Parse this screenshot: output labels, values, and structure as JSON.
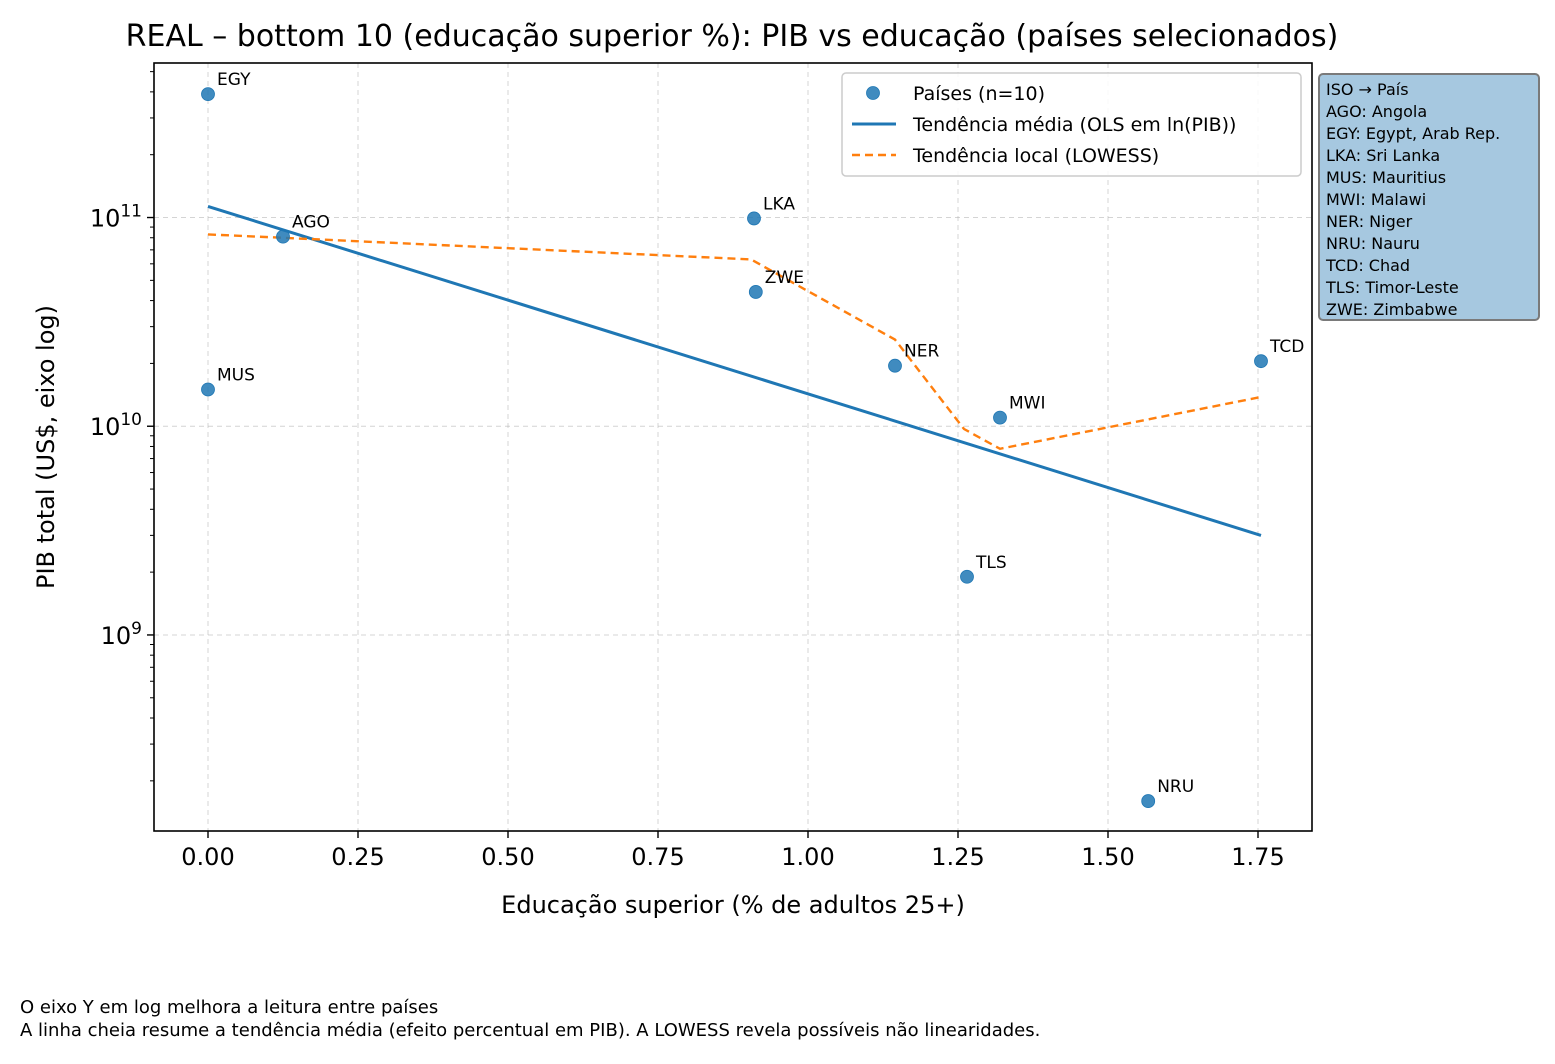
{
  "chart_data": {
    "type": "scatter",
    "title": "REAL – bottom 10 (educação superior %): PIB vs educação (países selecionados)",
    "xlabel": "Educação superior (% de adultos 25+)",
    "ylabel": "PIB total (US$, eixo log)",
    "x_scale": "linear",
    "y_scale": "log",
    "xlim": [
      -0.09,
      1.84
    ],
    "ylim": [
      115000000.0,
      550000000000.0
    ],
    "x_ticks": [
      0.0,
      0.25,
      0.5,
      0.75,
      1.0,
      1.25,
      1.5,
      1.75
    ],
    "x_tick_labels": [
      "0.00",
      "0.25",
      "0.50",
      "0.75",
      "1.00",
      "1.25",
      "1.50",
      "1.75"
    ],
    "y_ticks": [
      {
        "value": 1000000000.0,
        "base": "10",
        "exp": "9"
      },
      {
        "value": 10000000000.0,
        "base": "10",
        "exp": "10"
      },
      {
        "value": 100000000000.0,
        "base": "10",
        "exp": "11"
      }
    ],
    "grid": true,
    "legend_position": "top-right",
    "legend": [
      {
        "label": "Países (n=10)",
        "kind": "marker",
        "color": "#1f77b4"
      },
      {
        "label": "Tendência média (OLS em ln(PIB))",
        "kind": "line",
        "color": "#1f77b4"
      },
      {
        "label": "Tendência local (LOWESS)",
        "kind": "dashed",
        "color": "#ff7f0e"
      }
    ],
    "points": [
      {
        "iso": "EGY",
        "x": 0.0,
        "y": 390000000000.0
      },
      {
        "iso": "AGO",
        "x": 0.125,
        "y": 81000000000.0
      },
      {
        "iso": "MUS",
        "x": 0.0,
        "y": 15000000000.0
      },
      {
        "iso": "LKA",
        "x": 0.91,
        "y": 99000000000.0
      },
      {
        "iso": "ZWE",
        "x": 0.913,
        "y": 44000000000.0
      },
      {
        "iso": "NER",
        "x": 1.145,
        "y": 19500000000.0
      },
      {
        "iso": "MWI",
        "x": 1.32,
        "y": 11000000000.0
      },
      {
        "iso": "TLS",
        "x": 1.265,
        "y": 1900000000.0
      },
      {
        "iso": "NRU",
        "x": 1.567,
        "y": 160000000.0
      },
      {
        "iso": "TCD",
        "x": 1.755,
        "y": 20500000000.0
      }
    ],
    "series": [
      {
        "name": "Tendência média (OLS em ln(PIB))",
        "style": "solid",
        "color": "#1f77b4",
        "x": [
          0.0,
          1.755
        ],
        "y": [
          113000000000.0,
          3000000000.0
        ]
      },
      {
        "name": "Tendência local (LOWESS)",
        "style": "dashed",
        "color": "#ff7f0e",
        "x": [
          0.0,
          0.125,
          0.905,
          1.145,
          1.26,
          1.32,
          1.755
        ],
        "y": [
          83000000000.0,
          80000000000.0,
          63000000000.0,
          26000000000.0,
          9700000000.0,
          7800000000.0,
          13800000000.0
        ]
      }
    ]
  },
  "iso_legend": {
    "title": "ISO → País",
    "items": [
      "AGO: Angola",
      "EGY: Egypt, Arab Rep.",
      "LKA: Sri Lanka",
      "MUS: Mauritius",
      "MWI: Malawi",
      "NER: Niger",
      "NRU: Nauru",
      "TCD: Chad",
      "TLS: Timor-Leste",
      "ZWE: Zimbabwe"
    ]
  },
  "footer": {
    "line1": "O eixo Y em log melhora a leitura entre países",
    "line2": "A linha cheia resume a tendência média (efeito percentual em PIB). A LOWESS revela possíveis não linearidades."
  }
}
